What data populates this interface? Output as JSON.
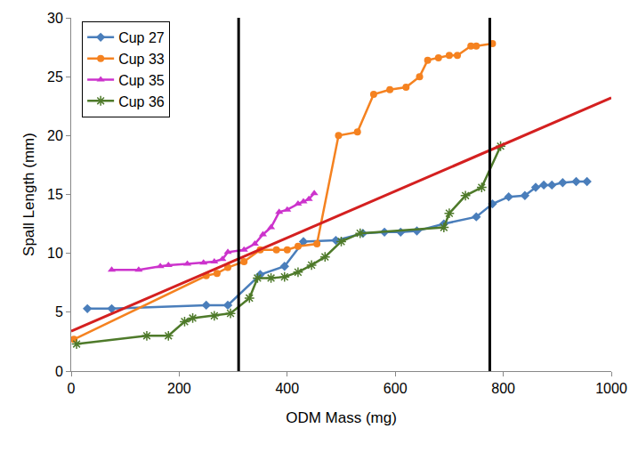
{
  "chart_data": {
    "type": "line",
    "x_label": "ODM Mass (mg)",
    "y_label": "Spall Length (mm)",
    "xlim": [
      0,
      1000
    ],
    "xticks": [
      0,
      200,
      400,
      600,
      800,
      1000
    ],
    "ylim": [
      0,
      30
    ],
    "yticks": [
      0,
      5,
      10,
      15,
      20,
      25,
      30
    ],
    "grid": false,
    "legend": "top-left",
    "series": [
      {
        "name": "Cup 27",
        "color": "#4a7ebb",
        "marker": "diamond",
        "x": [
          30,
          75,
          250,
          290,
          350,
          395,
          430,
          490,
          540,
          580,
          610,
          640,
          690,
          750,
          780,
          810,
          840,
          860,
          875,
          890,
          910,
          935,
          955
        ],
        "values": [
          5.3,
          5.3,
          5.6,
          5.6,
          8.2,
          8.9,
          11.0,
          11.1,
          11.7,
          11.8,
          11.8,
          11.9,
          12.5,
          13.1,
          14.2,
          14.8,
          14.9,
          15.6,
          15.8,
          15.8,
          16.0,
          16.1,
          16.1
        ]
      },
      {
        "name": "Cup 33",
        "color": "#f58220",
        "marker": "circle",
        "x": [
          5,
          250,
          270,
          290,
          320,
          350,
          380,
          400,
          420,
          455,
          495,
          530,
          560,
          590,
          620,
          645,
          660,
          680,
          700,
          715,
          740,
          750,
          780
        ],
        "values": [
          2.7,
          8.1,
          8.3,
          8.8,
          9.3,
          10.3,
          10.3,
          10.3,
          10.6,
          10.8,
          20.0,
          20.3,
          23.5,
          23.9,
          24.1,
          25.0,
          26.4,
          26.6,
          26.8,
          26.8,
          27.6,
          27.6,
          27.8
        ]
      },
      {
        "name": "Cup 35",
        "color": "#cc33cc",
        "marker": "triangle",
        "x": [
          75,
          125,
          165,
          180,
          215,
          245,
          265,
          280,
          290,
          320,
          340,
          355,
          370,
          385,
          400,
          420,
          430,
          440,
          450
        ],
        "values": [
          8.6,
          8.6,
          8.9,
          9.0,
          9.1,
          9.2,
          9.3,
          9.5,
          10.1,
          10.3,
          10.8,
          11.6,
          12.2,
          13.5,
          13.7,
          14.2,
          14.4,
          14.6,
          15.1
        ]
      },
      {
        "name": "Cup 36",
        "color": "#4e7a2a",
        "marker": "asterisk",
        "x": [
          10,
          140,
          180,
          210,
          225,
          265,
          295,
          330,
          345,
          370,
          395,
          420,
          445,
          470,
          500,
          535,
          690,
          700,
          730,
          760,
          795
        ],
        "values": [
          2.3,
          3.0,
          3.0,
          4.2,
          4.5,
          4.7,
          4.9,
          6.2,
          7.9,
          7.9,
          8.0,
          8.4,
          9.0,
          9.7,
          11.0,
          11.7,
          12.2,
          13.4,
          14.9,
          15.6,
          19.1
        ]
      }
    ],
    "trend_line": {
      "color": "#d42020",
      "x": [
        0,
        1000
      ],
      "values": [
        3.4,
        23.2
      ]
    },
    "vlines": {
      "color": "#000000",
      "x": [
        310,
        775
      ]
    }
  }
}
